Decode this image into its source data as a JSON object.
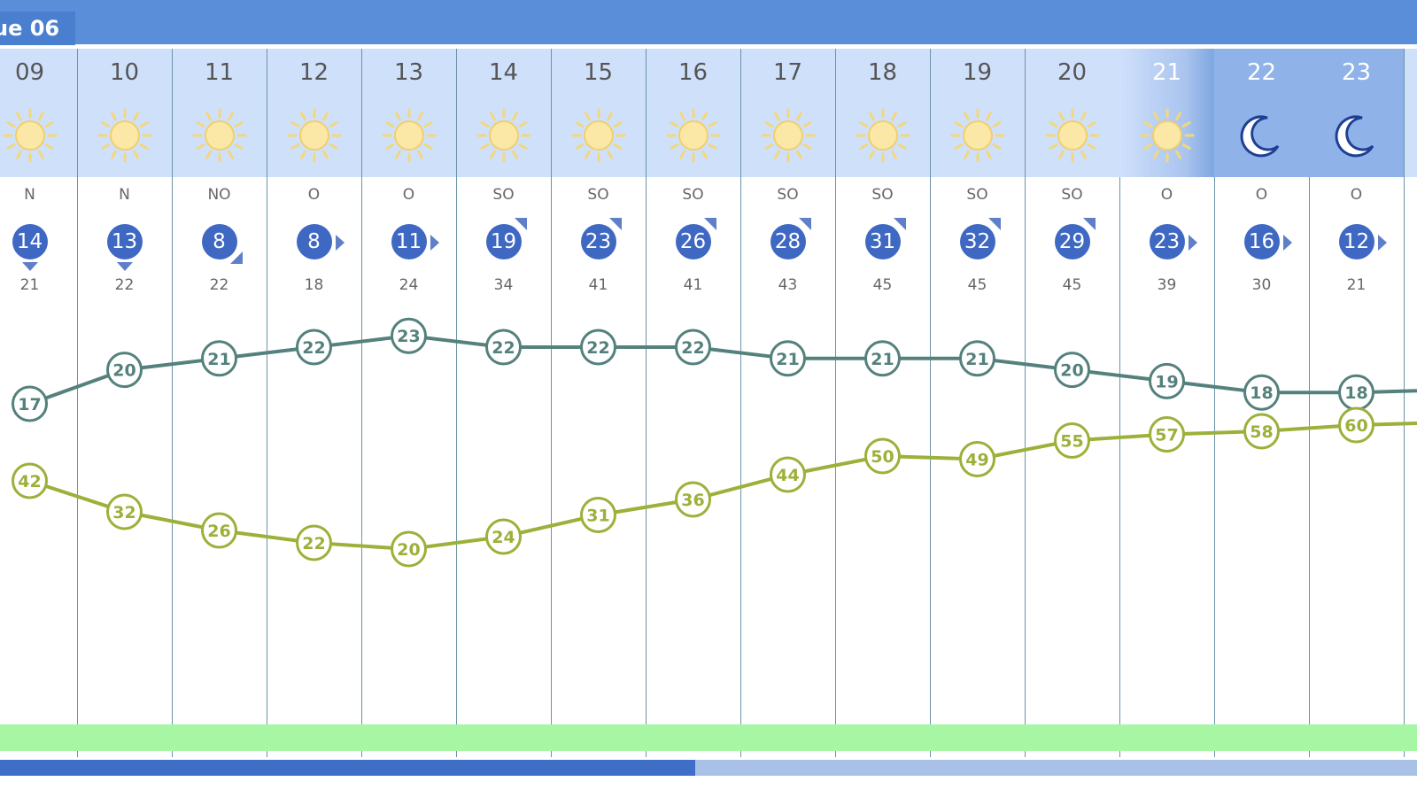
{
  "day_header": {
    "label": "ue 06"
  },
  "colors": {
    "temperature": "#54817c",
    "humidity": "#9cb03a",
    "wind_badge": "#3f68c3",
    "hour_band": "#cfe0fb",
    "night_band": "#8fb2e8",
    "bottom_band": "#a6f6a4",
    "header": "#5b8ed9"
  },
  "hours": [
    {
      "hour": "09",
      "icon": "sun-icon",
      "wind_dir": "N",
      "wind": "14",
      "arrow": "down",
      "gust": "21",
      "temp": "17",
      "humidity": "42",
      "phase": "day"
    },
    {
      "hour": "10",
      "icon": "sun-icon",
      "wind_dir": "N",
      "wind": "13",
      "arrow": "down",
      "gust": "22",
      "temp": "20",
      "humidity": "32",
      "phase": "day"
    },
    {
      "hour": "11",
      "icon": "sun-icon",
      "wind_dir": "NO",
      "wind": "8",
      "arrow": "down-right",
      "gust": "22",
      "temp": "21",
      "humidity": "26",
      "phase": "day"
    },
    {
      "hour": "12",
      "icon": "sun-icon",
      "wind_dir": "O",
      "wind": "8",
      "arrow": "right",
      "gust": "18",
      "temp": "22",
      "humidity": "22",
      "phase": "day"
    },
    {
      "hour": "13",
      "icon": "sun-icon",
      "wind_dir": "O",
      "wind": "11",
      "arrow": "right",
      "gust": "24",
      "temp": "23",
      "humidity": "20",
      "phase": "day"
    },
    {
      "hour": "14",
      "icon": "sun-icon",
      "wind_dir": "SO",
      "wind": "19",
      "arrow": "up-right",
      "gust": "34",
      "temp": "22",
      "humidity": "24",
      "phase": "day"
    },
    {
      "hour": "15",
      "icon": "sun-icon",
      "wind_dir": "SO",
      "wind": "23",
      "arrow": "up-right",
      "gust": "41",
      "temp": "22",
      "humidity": "31",
      "phase": "day"
    },
    {
      "hour": "16",
      "icon": "sun-icon",
      "wind_dir": "SO",
      "wind": "26",
      "arrow": "up-right",
      "gust": "41",
      "temp": "22",
      "humidity": "36",
      "phase": "day"
    },
    {
      "hour": "17",
      "icon": "sun-icon",
      "wind_dir": "SO",
      "wind": "28",
      "arrow": "up-right",
      "gust": "43",
      "temp": "21",
      "humidity": "44",
      "phase": "day"
    },
    {
      "hour": "18",
      "icon": "sun-icon",
      "wind_dir": "SO",
      "wind": "31",
      "arrow": "up-right",
      "gust": "45",
      "temp": "21",
      "humidity": "50",
      "phase": "day"
    },
    {
      "hour": "19",
      "icon": "sun-icon",
      "wind_dir": "SO",
      "wind": "32",
      "arrow": "up-right",
      "gust": "45",
      "temp": "21",
      "humidity": "49",
      "phase": "day"
    },
    {
      "hour": "20",
      "icon": "sun-icon",
      "wind_dir": "SO",
      "wind": "29",
      "arrow": "up-right",
      "gust": "45",
      "temp": "20",
      "humidity": "55",
      "phase": "day"
    },
    {
      "hour": "21",
      "icon": "sun-icon",
      "wind_dir": "O",
      "wind": "23",
      "arrow": "right",
      "gust": "39",
      "temp": "19",
      "humidity": "57",
      "phase": "dusk"
    },
    {
      "hour": "22",
      "icon": "moon-icon",
      "wind_dir": "O",
      "wind": "16",
      "arrow": "right",
      "gust": "30",
      "temp": "18",
      "humidity": "58",
      "phase": "night"
    },
    {
      "hour": "23",
      "icon": "moon-icon",
      "wind_dir": "O",
      "wind": "12",
      "arrow": "right",
      "gust": "21",
      "temp": "18",
      "humidity": "60",
      "phase": "night"
    }
  ]
}
